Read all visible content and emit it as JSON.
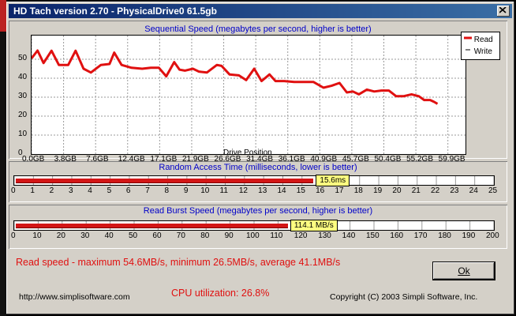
{
  "window": {
    "title": "HD Tach version 2.70 - PhysicalDrive0 61.5gb"
  },
  "sequential": {
    "title": "Sequential Speed (megabytes per second, higher is better)",
    "xlabel": "Drive Position",
    "legend": [
      {
        "label": "Read",
        "color": "#e01010"
      },
      {
        "label": "Write",
        "color": "#000000"
      }
    ]
  },
  "random_access": {
    "title": "Random Access Time (milliseconds, lower is better)",
    "value_label": "15.6ms"
  },
  "burst": {
    "title": "Read Burst Speed (megabytes per second, higher is better)",
    "value_label": "114.1 MB/s"
  },
  "summary": {
    "read_speed": "Read speed - maximum 54.6MB/s, minimum 26.5MB/s, average 41.1MB/s",
    "cpu": "CPU utilization: 26.8%"
  },
  "buttons": {
    "ok": "Ok"
  },
  "footer": {
    "url": "http://www.simplisoftware.com",
    "copyright": "Copyright (C) 2003 Simpli Software, Inc."
  },
  "chart_data": [
    {
      "type": "line",
      "title": "Sequential Speed (megabytes per second, higher is better)",
      "xlabel": "Drive Position",
      "ylabel": "",
      "x_tick_labels": [
        "0.0GB",
        "3.8GB",
        "7.6GB",
        "12.4GB",
        "17.1GB",
        "21.9GB",
        "26.6GB",
        "31.4GB",
        "36.1GB",
        "40.9GB",
        "45.7GB",
        "50.4GB",
        "55.2GB",
        "59.9GB"
      ],
      "y_tick_labels": [
        "0",
        "10",
        "20",
        "30",
        "40",
        "50"
      ],
      "xlim": [
        0,
        65.1
      ],
      "ylim": [
        0,
        60
      ],
      "grid": true,
      "legend_position": "top-right",
      "series": [
        {
          "name": "Read",
          "color": "#e01010",
          "x": [
            0.0,
            0.9,
            1.8,
            3.0,
            4.1,
            5.5,
            6.6,
            7.8,
            8.9,
            10.4,
            11.7,
            12.4,
            13.5,
            15.0,
            16.6,
            17.9,
            19.1,
            20.2,
            21.4,
            22.2,
            23.0,
            24.2,
            25.1,
            26.3,
            27.8,
            28.5,
            29.7,
            31.1,
            32.2,
            33.4,
            34.5,
            35.7,
            36.6,
            37.9,
            39.4,
            40.9,
            42.3,
            43.8,
            45.0,
            46.2,
            47.3,
            48.2,
            49.1,
            50.3,
            51.4,
            52.5,
            53.6,
            54.7,
            55.8,
            57.0,
            58.1,
            58.9,
            59.8,
            60.4,
            60.9
          ],
          "values": [
            50.5,
            54.6,
            48.0,
            54.5,
            47.0,
            47.0,
            54.5,
            45.0,
            43.0,
            47.0,
            47.5,
            53.5,
            47.0,
            45.5,
            45.0,
            45.5,
            45.5,
            41.0,
            48.5,
            44.5,
            44.0,
            45.0,
            43.5,
            43.0,
            47.0,
            46.5,
            42.0,
            41.5,
            39.0,
            45.0,
            38.5,
            42.0,
            38.5,
            38.5,
            38.0,
            38.0,
            38.0,
            35.0,
            36.0,
            37.5,
            32.5,
            33.0,
            31.5,
            34.0,
            33.0,
            33.5,
            33.5,
            30.5,
            30.5,
            31.5,
            30.5,
            28.5,
            28.5,
            27.5,
            26.5
          ]
        }
      ]
    },
    {
      "type": "bar",
      "title": "Random Access Time (milliseconds, lower is better)",
      "x_tick_labels": [
        "0",
        "1",
        "2",
        "3",
        "4",
        "5",
        "6",
        "7",
        "8",
        "9",
        "10",
        "11",
        "12",
        "13",
        "14",
        "15",
        "16",
        "17",
        "18",
        "19",
        "20",
        "21",
        "22",
        "23",
        "24",
        "25"
      ],
      "xlim": [
        0,
        25
      ],
      "values": [
        15.6
      ],
      "units": "ms"
    },
    {
      "type": "bar",
      "title": "Read Burst Speed (megabytes per second, higher is better)",
      "x_tick_labels": [
        "0",
        "10",
        "20",
        "30",
        "40",
        "50",
        "60",
        "70",
        "80",
        "90",
        "100",
        "110",
        "120",
        "130",
        "140",
        "150",
        "160",
        "170",
        "180",
        "190",
        "200"
      ],
      "xlim": [
        0,
        200
      ],
      "values": [
        114.1
      ],
      "units": "MB/s"
    }
  ]
}
